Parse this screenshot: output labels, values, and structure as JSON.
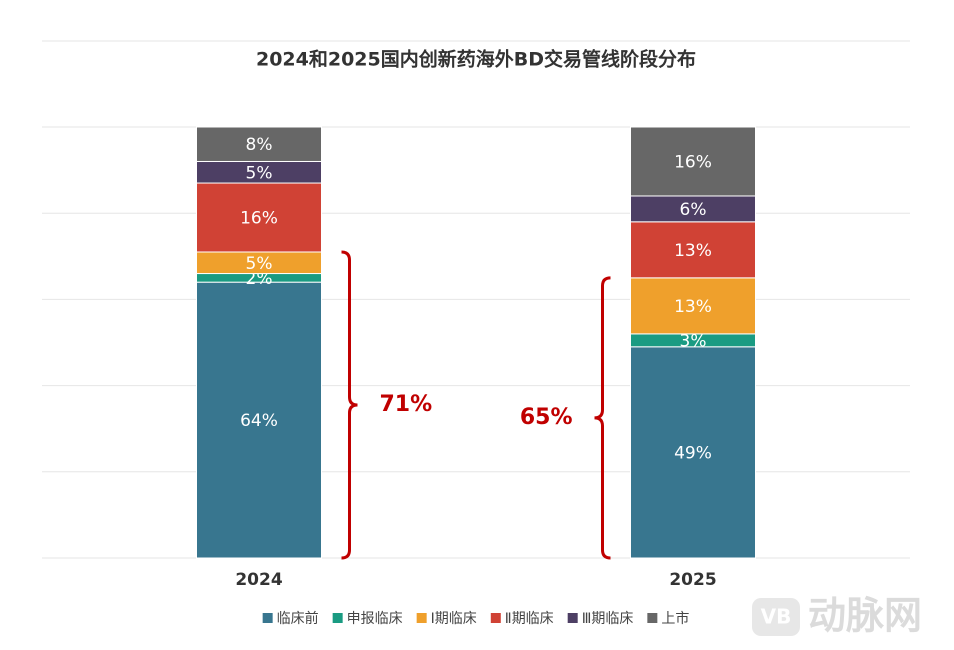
{
  "chart_data": {
    "type": "stacked_bar",
    "title": "2024和2025国内创新药海外BD交易管线阶段分布",
    "categories": [
      "2024",
      "2025"
    ],
    "series": [
      {
        "name": "临床前",
        "color": "#38768f",
        "values": [
          64,
          49
        ],
        "value_labels": [
          "64%",
          "49%"
        ]
      },
      {
        "name": "申报临床",
        "color": "#1a9b82",
        "values": [
          2,
          3
        ],
        "value_labels": [
          "2%",
          "3%"
        ]
      },
      {
        "name": "Ⅰ期临床",
        "color": "#efa02c",
        "values": [
          5,
          13
        ],
        "value_labels": [
          "5%",
          "13%"
        ]
      },
      {
        "name": "Ⅱ期临床",
        "color": "#d04235",
        "values": [
          16,
          13
        ],
        "value_labels": [
          "16%",
          "13%"
        ]
      },
      {
        "name": "Ⅲ期临床",
        "color": "#4d3f64",
        "values": [
          5,
          6
        ],
        "value_labels": [
          "5%",
          "6%"
        ]
      },
      {
        "name": "上市",
        "color": "#676767",
        "values": [
          8,
          16
        ],
        "value_labels": [
          "8%",
          "16%"
        ]
      }
    ],
    "ylim": [
      0,
      100
    ],
    "yticks": [
      0,
      20,
      40,
      60,
      80,
      100
    ],
    "grid": true,
    "legend": "bottom",
    "annotations": [
      {
        "category": 0,
        "value": 71,
        "text": "71%",
        "side": "right",
        "color": "#c00000"
      },
      {
        "category": 1,
        "value": 65,
        "text": "65%",
        "side": "left",
        "color": "#c00000"
      }
    ]
  },
  "watermark": {
    "logo": "VB",
    "text": "动脉网"
  }
}
